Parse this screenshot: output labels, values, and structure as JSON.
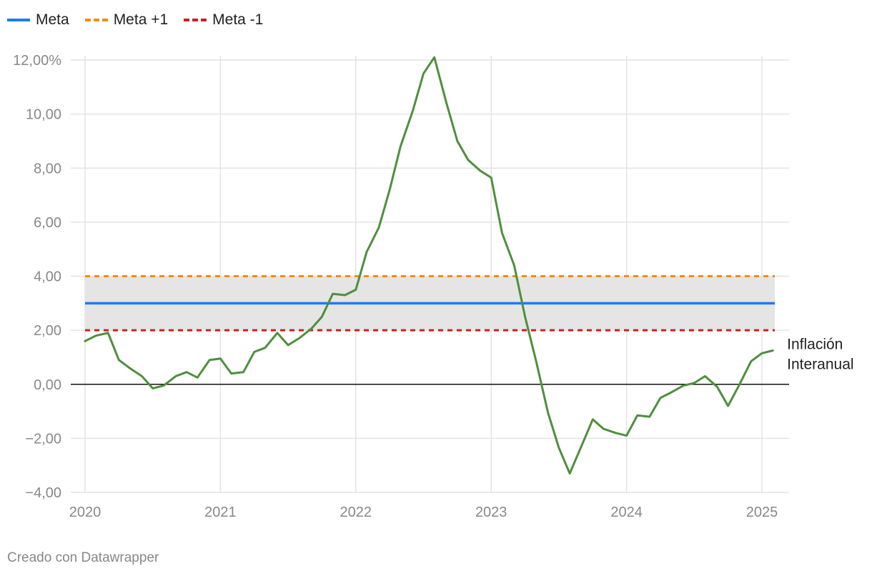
{
  "legend": [
    {
      "label": "Meta",
      "color": "#1a7cf5",
      "style": "solid"
    },
    {
      "label": "Meta +1",
      "color": "#f28c0f",
      "style": "dashed"
    },
    {
      "label": "Meta -1",
      "color": "#cc1f1f",
      "style": "dashed"
    }
  ],
  "footer": "Creado con Datawrapper",
  "chart_data": {
    "type": "line",
    "title": "",
    "xlabel": "",
    "ylabel": "",
    "xlim": [
      2020.0,
      2025.1
    ],
    "ylim": [
      -4,
      12
    ],
    "y_ticks": [
      12,
      10,
      8,
      6,
      4,
      2,
      0,
      -2,
      -4
    ],
    "y_tick_labels": [
      "12,00%",
      "10,00",
      "8,00",
      "6,00",
      "4,00",
      "2,00",
      "0,00",
      "−2,00",
      "−4,00"
    ],
    "x_ticks": [
      2020,
      2021,
      2022,
      2023,
      2024,
      2025
    ],
    "x_tick_labels": [
      "2020",
      "2021",
      "2022",
      "2023",
      "2024",
      "2025"
    ],
    "grid": true,
    "band": {
      "from": 2,
      "to": 4,
      "color": "#e5e5e5"
    },
    "series": [
      {
        "name": "Meta",
        "color": "#1a7cf5",
        "style": "solid",
        "constant": 3
      },
      {
        "name": "Meta +1",
        "color": "#f28c0f",
        "style": "dashed",
        "constant": 4
      },
      {
        "name": "Meta -1",
        "color": "#cc1f1f",
        "style": "dashed",
        "constant": 2
      },
      {
        "name": "Inflación Interanual",
        "label_lines": [
          "Inflación",
          "Interanual"
        ],
        "color": "#4e8f3e",
        "style": "solid",
        "x": [
          2020.0,
          2020.08,
          2020.17,
          2020.25,
          2020.33,
          2020.42,
          2020.5,
          2020.58,
          2020.67,
          2020.75,
          2020.83,
          2020.92,
          2021.0,
          2021.08,
          2021.17,
          2021.25,
          2021.33,
          2021.42,
          2021.5,
          2021.58,
          2021.67,
          2021.75,
          2021.83,
          2021.92,
          2022.0,
          2022.08,
          2022.17,
          2022.25,
          2022.33,
          2022.42,
          2022.5,
          2022.58,
          2022.67,
          2022.75,
          2022.83,
          2022.92,
          2023.0,
          2023.08,
          2023.17,
          2023.25,
          2023.33,
          2023.42,
          2023.5,
          2023.58,
          2023.67,
          2023.75,
          2023.83,
          2023.92,
          2024.0,
          2024.08,
          2024.17,
          2024.25,
          2024.33,
          2024.42,
          2024.5,
          2024.58,
          2024.67,
          2024.75,
          2024.83,
          2024.92,
          2025.0,
          2025.08
        ],
        "y": [
          1.6,
          1.8,
          1.9,
          0.9,
          0.6,
          0.3,
          -0.15,
          -0.05,
          0.3,
          0.45,
          0.25,
          0.9,
          0.95,
          0.4,
          0.45,
          1.2,
          1.35,
          1.9,
          1.45,
          1.7,
          2.05,
          2.5,
          3.35,
          3.3,
          3.5,
          4.9,
          5.8,
          7.2,
          8.8,
          10.1,
          11.5,
          12.1,
          10.4,
          9.0,
          8.3,
          7.9,
          7.65,
          5.6,
          4.4,
          2.5,
          0.9,
          -1.05,
          -2.35,
          -3.3,
          -2.25,
          -1.3,
          -1.65,
          -1.8,
          -1.9,
          -1.15,
          -1.2,
          -0.5,
          -0.3,
          -0.05,
          0.05,
          0.3,
          -0.1,
          -0.8,
          -0.05,
          0.85,
          1.15,
          1.25
        ]
      }
    ]
  }
}
